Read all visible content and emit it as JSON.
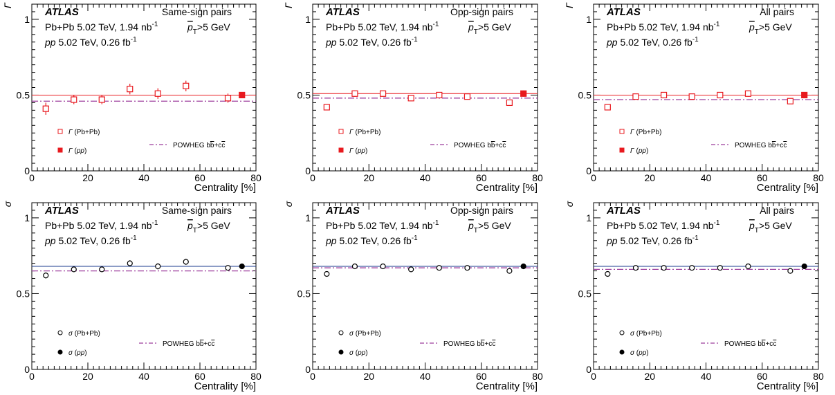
{
  "figure": {
    "atlas_label": "ATLAS",
    "line1_prefix": "Pb+Pb 5.02 TeV, 1.94 nb",
    "line1_sup": "-1",
    "line2_pp": "pp",
    "line2_rest": " 5.02 TeV, 0.26 fb",
    "line2_sup": "-1",
    "pt_symbol": "p",
    "pt_sub": "T",
    "pt_cut": ">5 GeV",
    "xlabel": "Centrality [%]",
    "legend_powheg": "POWHEG b",
    "legend_powheg_b": "b",
    "legend_powheg_mid": "+c",
    "legend_powheg_c": "c",
    "legend_pbpb": "(Pb+Pb)",
    "legend_pp": "pp",
    "colors": {
      "gamma": "#e8191e",
      "sigma": "#000000",
      "powheg": "#9c3c9c",
      "ref_gamma": "#e8191e",
      "ref_sigma": "#1a3a8c"
    }
  },
  "chart_data": [
    {
      "type": "scatter",
      "quantity": "gamma",
      "ylabel": "Γ",
      "pair_label": "Same-sign pairs",
      "xlim": [
        0,
        80
      ],
      "ylim": [
        0,
        1.1
      ],
      "xticks": [
        0,
        20,
        40,
        60,
        80
      ],
      "yticks": [
        0,
        0.5,
        1
      ],
      "series": [
        {
          "name": "Γ (Pb+Pb)",
          "x": [
            5,
            15,
            25,
            35,
            45,
            55,
            70
          ],
          "y": [
            0.41,
            0.47,
            0.47,
            0.54,
            0.51,
            0.56,
            0.48
          ],
          "err": [
            0.04,
            0.03,
            0.03,
            0.035,
            0.035,
            0.035,
            0.03
          ]
        },
        {
          "name": "Γ (pp)",
          "x": [
            75
          ],
          "y": [
            0.5
          ],
          "err": [
            0.02
          ]
        }
      ],
      "powheg": 0.46,
      "ref_line": 0.5
    },
    {
      "type": "scatter",
      "quantity": "gamma",
      "ylabel": "Γ",
      "pair_label": "Opp-sign pairs",
      "xlim": [
        0,
        80
      ],
      "ylim": [
        0,
        1.1
      ],
      "xticks": [
        0,
        20,
        40,
        60,
        80
      ],
      "yticks": [
        0,
        0.5,
        1
      ],
      "series": [
        {
          "name": "Γ (Pb+Pb)",
          "x": [
            5,
            15,
            25,
            35,
            45,
            55,
            70
          ],
          "y": [
            0.42,
            0.51,
            0.51,
            0.48,
            0.5,
            0.49,
            0.45
          ],
          "err": [
            0.02,
            0.02,
            0.02,
            0.02,
            0.02,
            0.02,
            0.02
          ]
        },
        {
          "name": "Γ (pp)",
          "x": [
            75
          ],
          "y": [
            0.51
          ],
          "err": [
            0.02
          ]
        }
      ],
      "powheg": 0.48,
      "ref_line": 0.51
    },
    {
      "type": "scatter",
      "quantity": "gamma",
      "ylabel": "Γ",
      "pair_label": "All pairs",
      "xlim": [
        0,
        80
      ],
      "ylim": [
        0,
        1.1
      ],
      "xticks": [
        0,
        20,
        40,
        60,
        80
      ],
      "yticks": [
        0,
        0.5,
        1
      ],
      "series": [
        {
          "name": "Γ (Pb+Pb)",
          "x": [
            5,
            15,
            25,
            35,
            45,
            55,
            70
          ],
          "y": [
            0.42,
            0.49,
            0.5,
            0.49,
            0.5,
            0.51,
            0.46
          ],
          "err": [
            0.015,
            0.015,
            0.015,
            0.015,
            0.015,
            0.02,
            0.015
          ]
        },
        {
          "name": "Γ (pp)",
          "x": [
            75
          ],
          "y": [
            0.5
          ],
          "err": [
            0.02
          ]
        }
      ],
      "powheg": 0.47,
      "ref_line": 0.5
    },
    {
      "type": "scatter",
      "quantity": "sigma",
      "ylabel": "σ",
      "pair_label": "Same-sign pairs",
      "xlim": [
        0,
        80
      ],
      "ylim": [
        0,
        1.1
      ],
      "xticks": [
        0,
        20,
        40,
        60,
        80
      ],
      "yticks": [
        0,
        0.5,
        1
      ],
      "series": [
        {
          "name": "σ (Pb+Pb)",
          "x": [
            5,
            15,
            25,
            35,
            45,
            55,
            70
          ],
          "y": [
            0.62,
            0.66,
            0.66,
            0.7,
            0.68,
            0.71,
            0.67
          ],
          "err": [
            0.02,
            0.015,
            0.015,
            0.02,
            0.02,
            0.02,
            0.015
          ]
        },
        {
          "name": "σ (pp)",
          "x": [
            75
          ],
          "y": [
            0.68
          ],
          "err": [
            0.01
          ]
        }
      ],
      "powheg": 0.65,
      "ref_line": 0.68
    },
    {
      "type": "scatter",
      "quantity": "sigma",
      "ylabel": "σ",
      "pair_label": "Opp-sign pairs",
      "xlim": [
        0,
        80
      ],
      "ylim": [
        0,
        1.1
      ],
      "xticks": [
        0,
        20,
        40,
        60,
        80
      ],
      "yticks": [
        0,
        0.5,
        1
      ],
      "series": [
        {
          "name": "σ (Pb+Pb)",
          "x": [
            5,
            15,
            25,
            35,
            45,
            55,
            70
          ],
          "y": [
            0.63,
            0.68,
            0.68,
            0.66,
            0.67,
            0.67,
            0.65
          ],
          "err": [
            0.01,
            0.01,
            0.01,
            0.01,
            0.01,
            0.01,
            0.01
          ]
        },
        {
          "name": "σ (pp)",
          "x": [
            75
          ],
          "y": [
            0.68
          ],
          "err": [
            0.01
          ]
        }
      ],
      "powheg": 0.67,
      "ref_line": 0.68
    },
    {
      "type": "scatter",
      "quantity": "sigma",
      "ylabel": "σ",
      "pair_label": "All pairs",
      "xlim": [
        0,
        80
      ],
      "ylim": [
        0,
        1.1
      ],
      "xticks": [
        0,
        20,
        40,
        60,
        80
      ],
      "yticks": [
        0,
        0.5,
        1
      ],
      "series": [
        {
          "name": "σ (Pb+Pb)",
          "x": [
            5,
            15,
            25,
            35,
            45,
            55,
            70
          ],
          "y": [
            0.63,
            0.67,
            0.67,
            0.67,
            0.67,
            0.68,
            0.65
          ],
          "err": [
            0.01,
            0.01,
            0.01,
            0.01,
            0.01,
            0.01,
            0.01
          ]
        },
        {
          "name": "σ (pp)",
          "x": [
            75
          ],
          "y": [
            0.68
          ],
          "err": [
            0.01
          ]
        }
      ],
      "powheg": 0.66,
      "ref_line": 0.68
    }
  ]
}
